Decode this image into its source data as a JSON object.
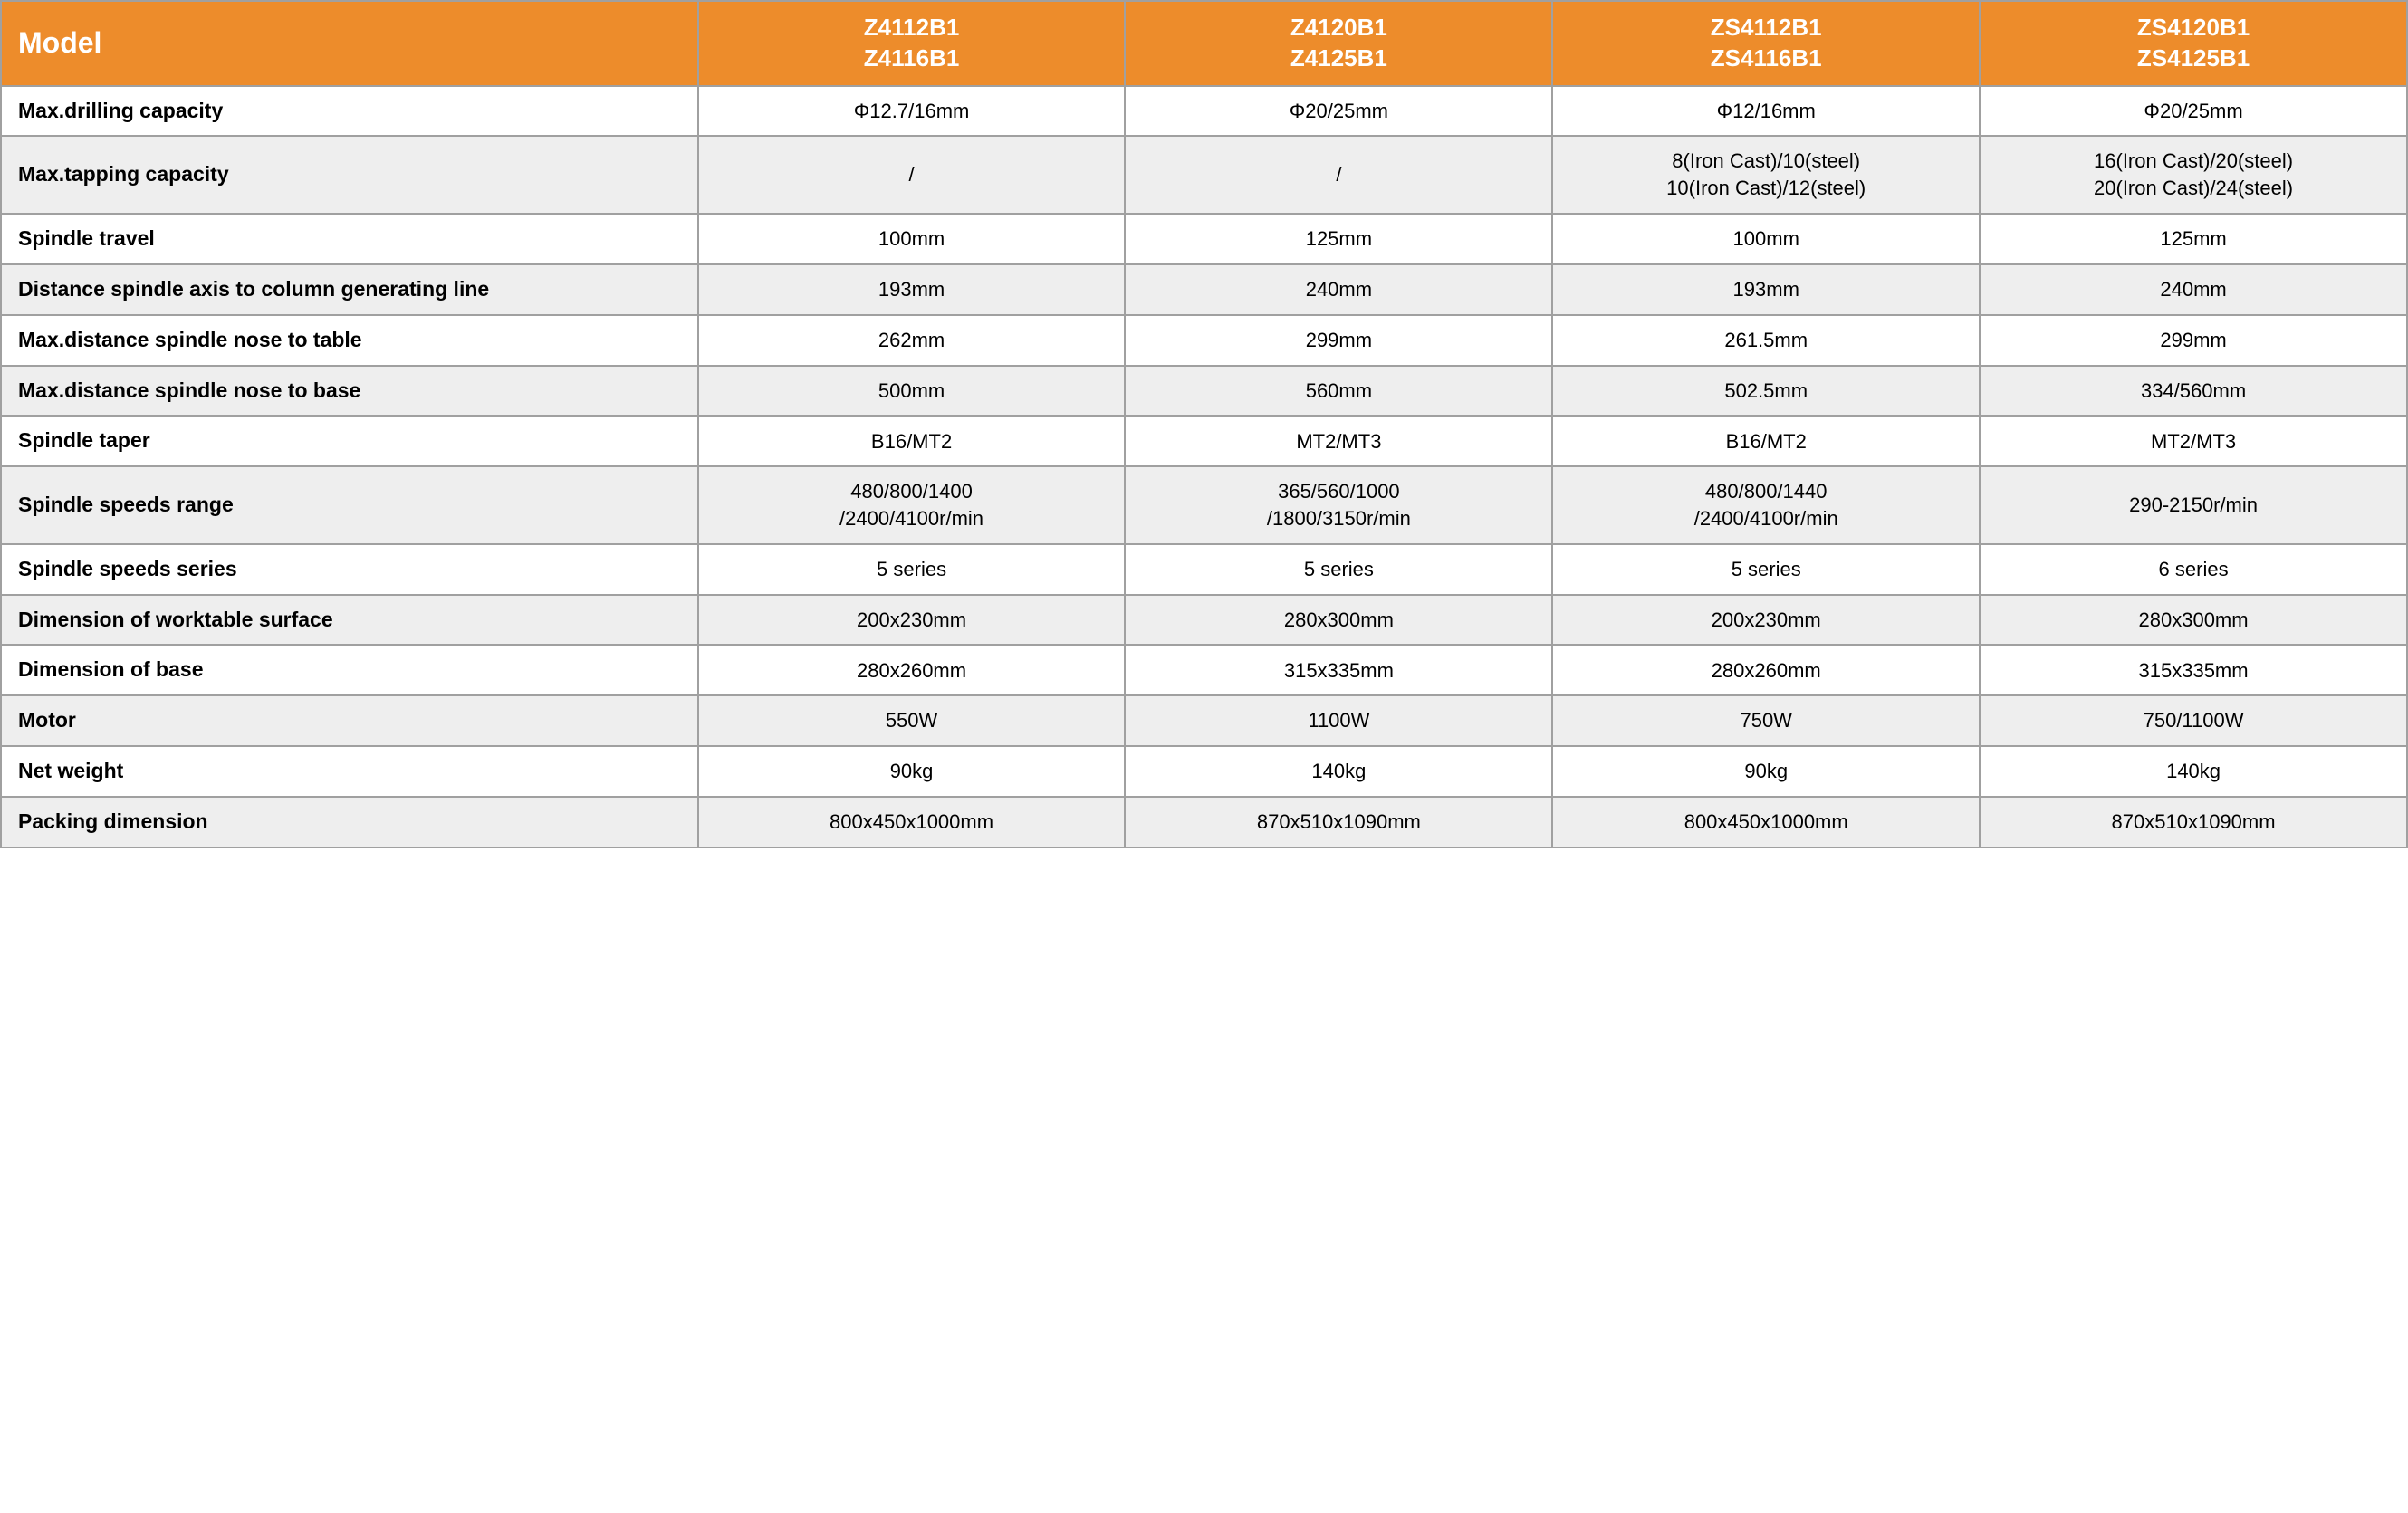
{
  "table": {
    "header_bg": "#ed8c2b",
    "header_fg": "#ffffff",
    "row_even_bg": "#eeeeee",
    "row_odd_bg": "#ffffff",
    "model_label": "Model",
    "columns": [
      "Z4112B1\nZ4116B1",
      "Z4120B1\nZ4125B1",
      "ZS4112B1\nZS4116B1",
      "ZS4120B1\nZS4125B1"
    ],
    "rows": [
      {
        "label": "Max.drilling capacity",
        "values": [
          "Φ12.7/16mm",
          "Φ20/25mm",
          "Φ12/16mm",
          "Φ20/25mm"
        ]
      },
      {
        "label": "Max.tapping capacity",
        "values": [
          "/",
          "/",
          "8(Iron Cast)/10(steel)\n10(Iron Cast)/12(steel)",
          "16(Iron Cast)/20(steel)\n20(Iron Cast)/24(steel)"
        ]
      },
      {
        "label": "Spindle travel",
        "values": [
          "100mm",
          "125mm",
          "100mm",
          "125mm"
        ]
      },
      {
        "label": "Distance spindle axis to column generating line",
        "values": [
          "193mm",
          "240mm",
          "193mm",
          "240mm"
        ]
      },
      {
        "label": "Max.distance spindle nose to table",
        "values": [
          "262mm",
          "299mm",
          "261.5mm",
          "299mm"
        ]
      },
      {
        "label": "Max.distance spindle nose to base",
        "values": [
          "500mm",
          "560mm",
          "502.5mm",
          "334/560mm"
        ]
      },
      {
        "label": "Spindle taper",
        "values": [
          "B16/MT2",
          "MT2/MT3",
          "B16/MT2",
          "MT2/MT3"
        ]
      },
      {
        "label": "Spindle speeds range",
        "values": [
          "480/800/1400\n/2400/4100r/min",
          "365/560/1000\n/1800/3150r/min",
          "480/800/1440\n/2400/4100r/min",
          "290-2150r/min"
        ]
      },
      {
        "label": "Spindle speeds series",
        "values": [
          "5 series",
          "5 series",
          "5 series",
          "6 series"
        ]
      },
      {
        "label": "Dimension of worktable surface",
        "values": [
          "200x230mm",
          "280x300mm",
          "200x230mm",
          "280x300mm"
        ]
      },
      {
        "label": "Dimension of base",
        "values": [
          "280x260mm",
          "315x335mm",
          "280x260mm",
          "315x335mm"
        ]
      },
      {
        "label": "Motor",
        "values": [
          "550W",
          "1100W",
          "750W",
          "750/1100W"
        ]
      },
      {
        "label": "Net weight",
        "values": [
          "90kg",
          "140kg",
          "90kg",
          "140kg"
        ]
      },
      {
        "label": "Packing dimension",
        "values": [
          "800x450x1000mm",
          "870x510x1090mm",
          "800x450x1000mm",
          "870x510x1090mm"
        ]
      }
    ]
  }
}
